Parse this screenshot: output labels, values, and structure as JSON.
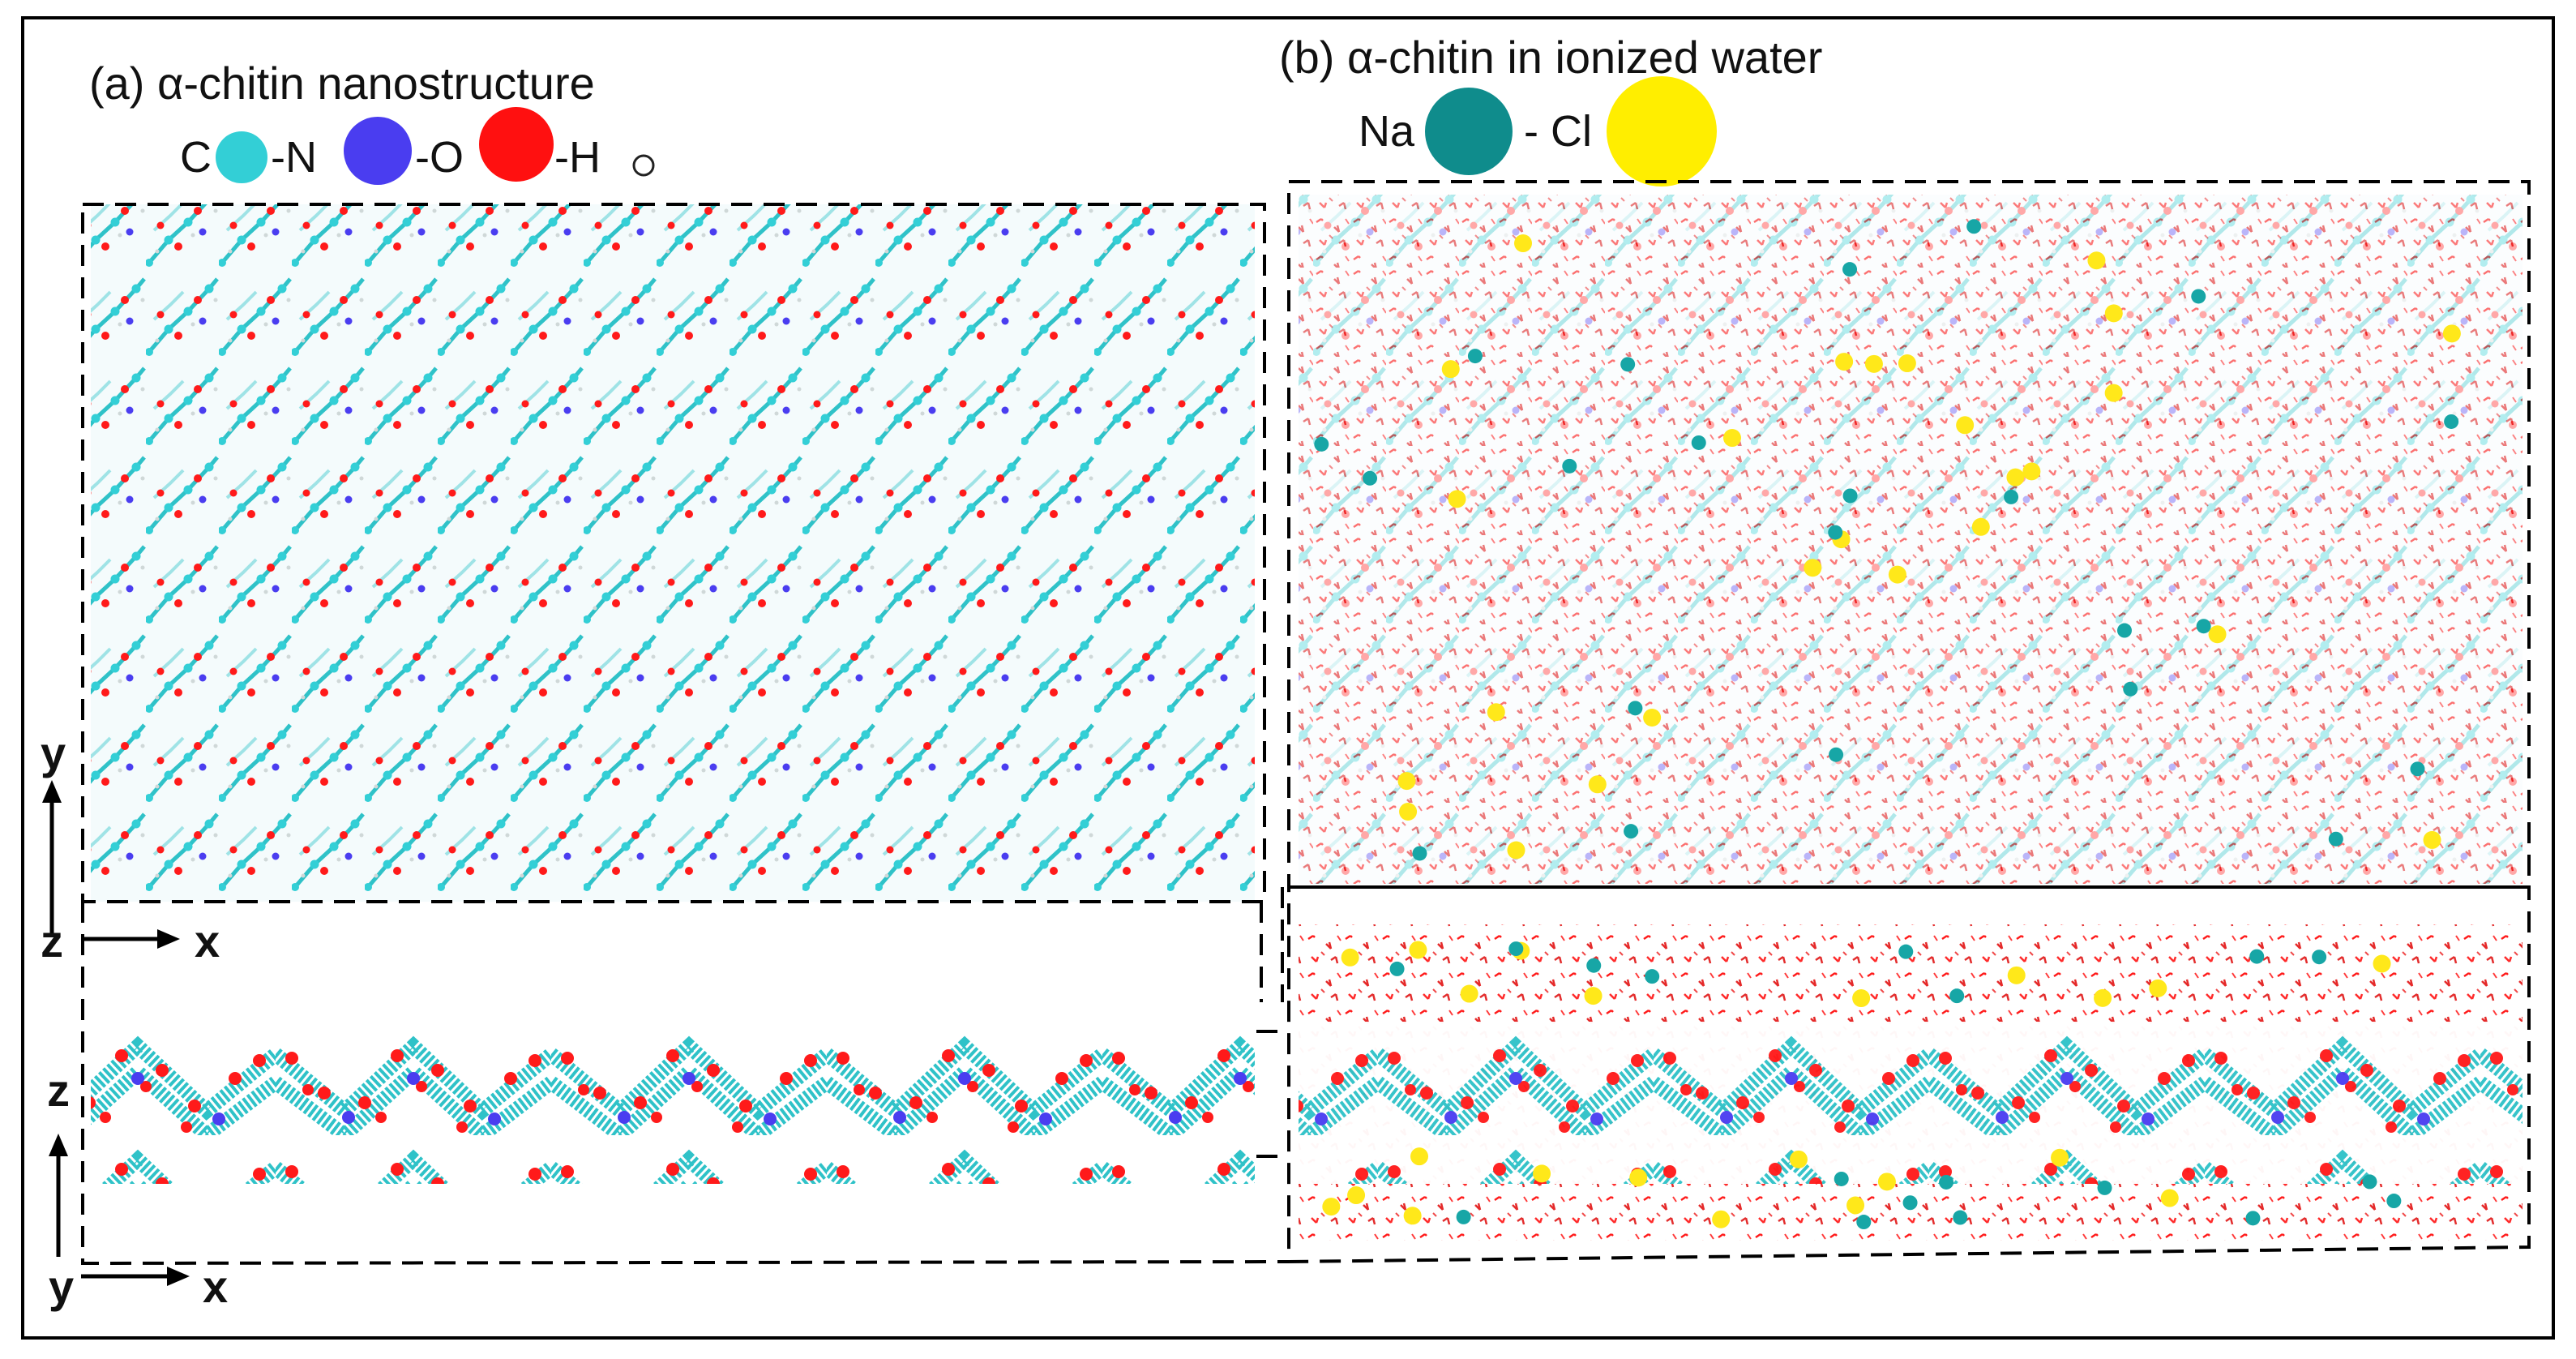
{
  "panel_a": {
    "caption": "(a)  α-chitin nanostructure",
    "legend": [
      {
        "label": "C",
        "color": "#33cfd6"
      },
      {
        "label": "-N",
        "color": "#4a3df0"
      },
      {
        "label": "-O",
        "color": "#ff1010"
      },
      {
        "label": "-H",
        "color": "#ffffff"
      }
    ]
  },
  "panel_b": {
    "caption": "(b) α-chitin in ionized water",
    "legend": [
      {
        "label": "Na",
        "color": "#0f8c8c"
      },
      {
        "label": "- Cl",
        "color": "#ffee00"
      }
    ]
  },
  "axes": {
    "top_view": {
      "up": "y",
      "right": "x",
      "origin": "z"
    },
    "side_view": {
      "up": "z",
      "right": "x",
      "origin": "y"
    }
  },
  "colors": {
    "carbon": "#33cfd6",
    "nitrogen": "#4a3df0",
    "oxygen": "#ff1010",
    "water": "#e2452f",
    "sodium": "#17a6a6",
    "chlorine": "#ffe81a",
    "frame": "#000000"
  }
}
